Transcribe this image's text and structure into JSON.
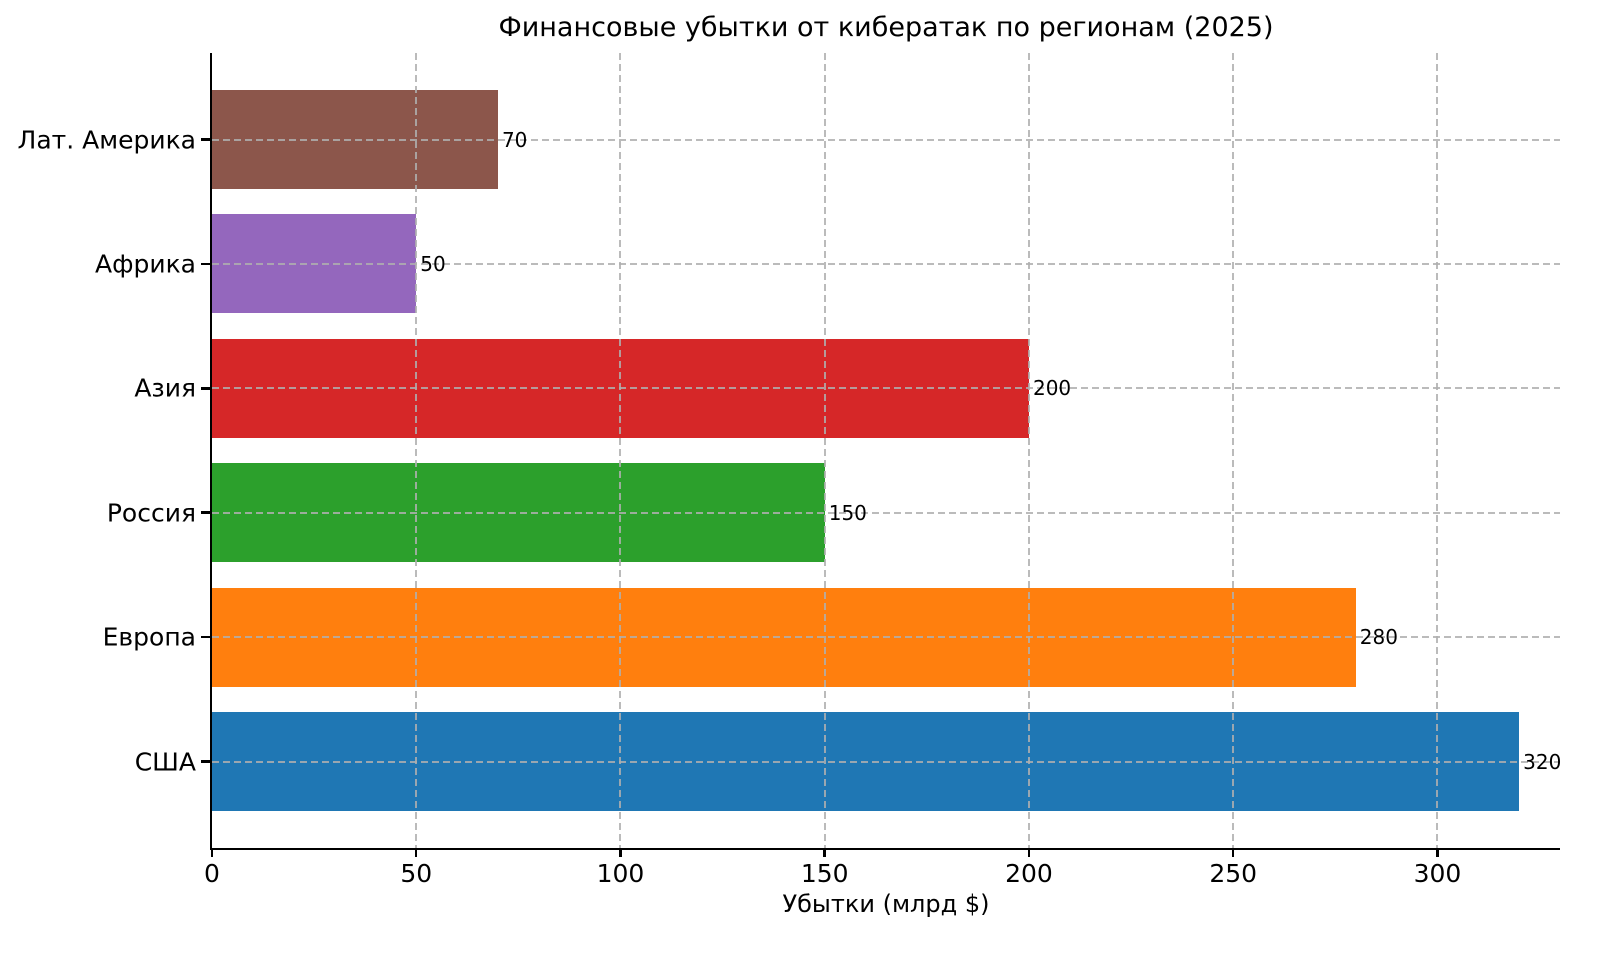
{
  "title": "Финансовые убытки от кибератак по регионам (2025)",
  "chart_data": {
    "type": "bar",
    "orientation": "horizontal",
    "title": "Финансовые убытки от кибератак по регионам (2025)",
    "xlabel": "Убытки (млрд $)",
    "ylabel": "",
    "categories_bottom_to_top": [
      "США",
      "Европа",
      "Россия",
      "Азия",
      "Африка",
      "Лат. Америка"
    ],
    "values": [
      320,
      280,
      150,
      200,
      50,
      70
    ],
    "bar_colors": [
      "#1f77b4",
      "#ff7f0e",
      "#2ca02c",
      "#d62728",
      "#9467bd",
      "#8c564b"
    ],
    "value_labels": [
      "320",
      "280",
      "150",
      "200",
      "50",
      "70"
    ],
    "x_ticks": [
      0,
      50,
      100,
      150,
      200,
      250,
      300
    ],
    "xlim": [
      0,
      330
    ],
    "grid": true,
    "grid_linestyle": "dashed",
    "legend": "none"
  },
  "colors": {
    "background": "#ffffff",
    "axis": "#000000",
    "text": "#000000",
    "grid": "#afafaf"
  }
}
